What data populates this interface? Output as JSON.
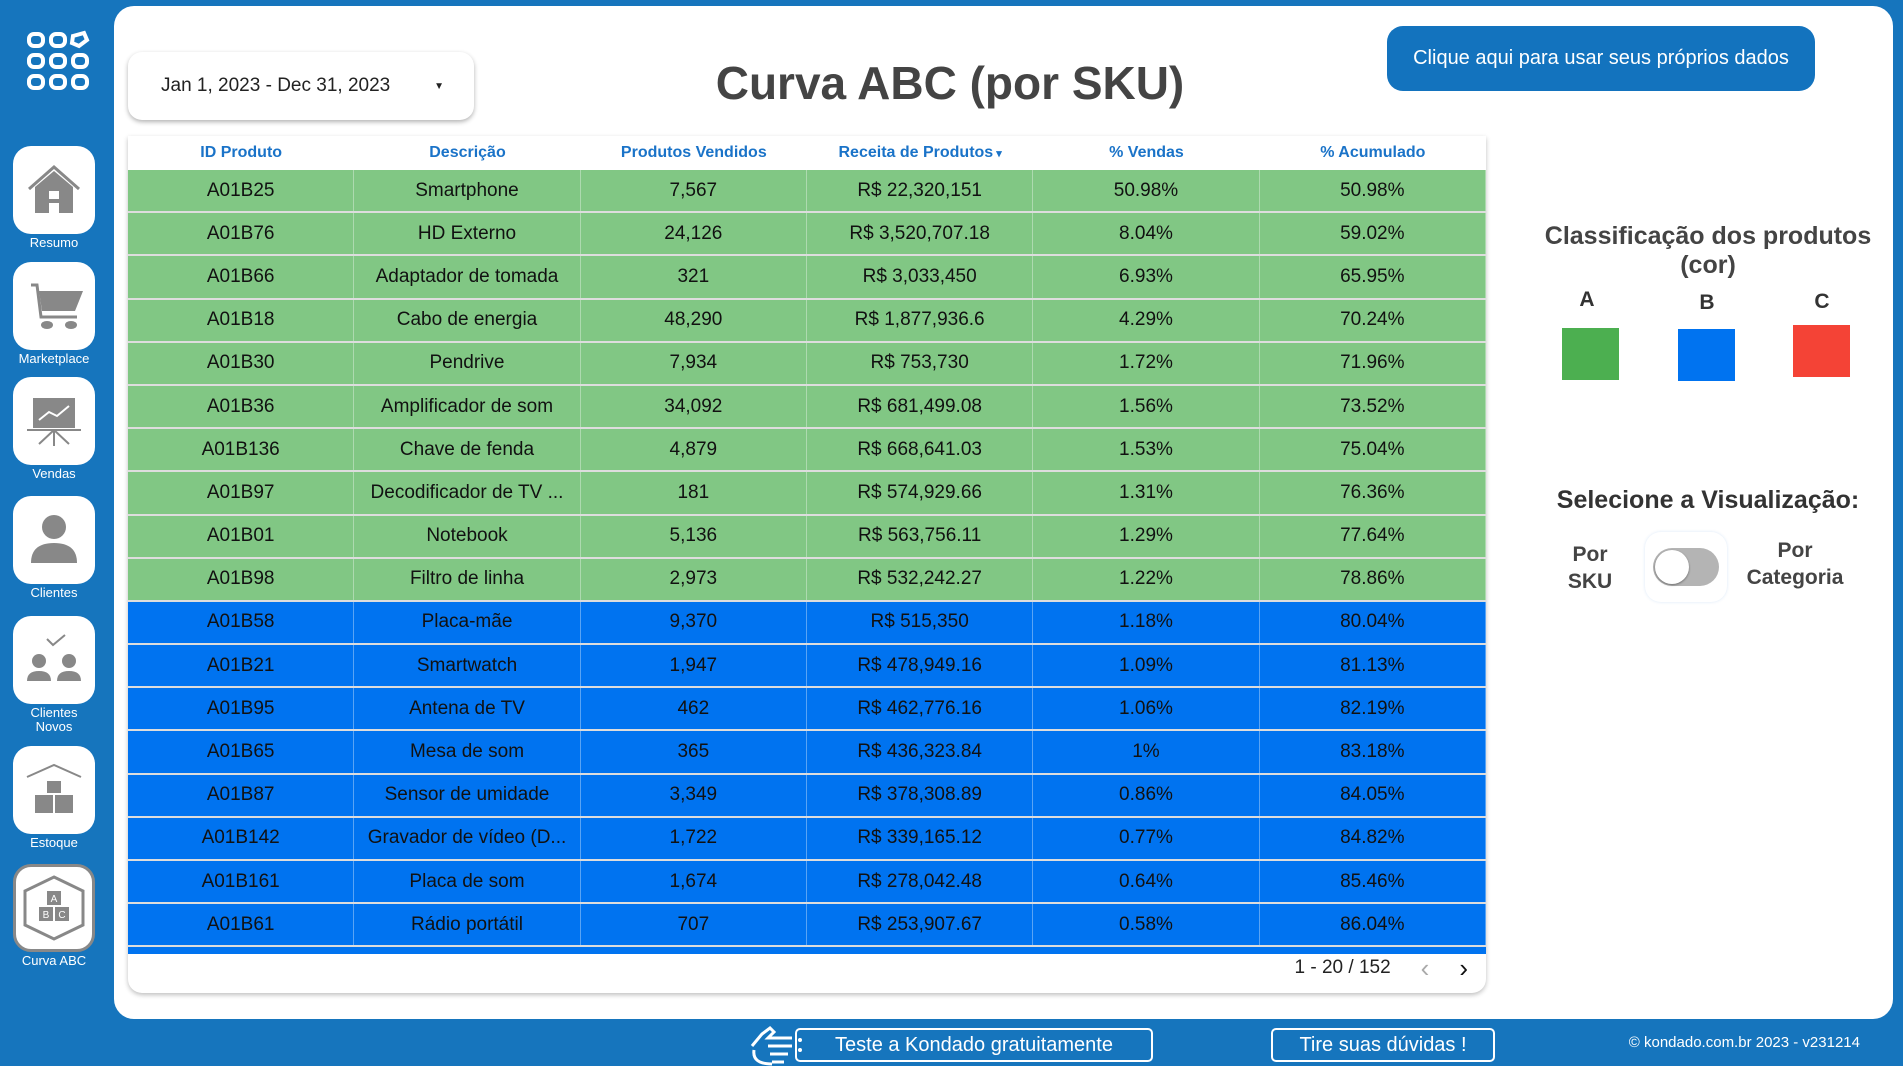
{
  "sidebar": {
    "items": [
      {
        "label": "Resumo",
        "icon": "home-icon"
      },
      {
        "label": "Marketplace",
        "icon": "cart-icon"
      },
      {
        "label": "Vendas",
        "icon": "presentation-chart-icon"
      },
      {
        "label": "Clientes",
        "icon": "user-icon"
      },
      {
        "label": "Clientes Novos",
        "icon": "new-clients-icon"
      },
      {
        "label": "Estoque",
        "icon": "warehouse-icon"
      },
      {
        "label": "Curva ABC",
        "icon": "abc-curve-icon",
        "active": true
      }
    ]
  },
  "header": {
    "date_range": "Jan 1, 2023 - Dec 31, 2023",
    "title": "Curva ABC (por SKU)",
    "cta": "Clique aqui para usar seus próprios dados"
  },
  "table": {
    "columns": [
      "ID Produto",
      "Descrição",
      "Produtos Vendidos",
      "Receita de Produtos",
      "% Vendas",
      "% Acumulado"
    ],
    "sort_column": "Receita de Produtos",
    "sort_dir": "desc",
    "rows": [
      [
        "A01B25",
        "Smartphone",
        "7,567",
        "R$ 22,320,151",
        "50.98%",
        "50.98%",
        "A"
      ],
      [
        "A01B76",
        "HD Externo",
        "24,126",
        "R$ 3,520,707.18",
        "8.04%",
        "59.02%",
        "A"
      ],
      [
        "A01B66",
        "Adaptador de tomada",
        "321",
        "R$ 3,033,450",
        "6.93%",
        "65.95%",
        "A"
      ],
      [
        "A01B18",
        "Cabo de energia",
        "48,290",
        "R$ 1,877,936.6",
        "4.29%",
        "70.24%",
        "A"
      ],
      [
        "A01B30",
        "Pendrive",
        "7,934",
        "R$ 753,730",
        "1.72%",
        "71.96%",
        "A"
      ],
      [
        "A01B36",
        "Amplificador de som",
        "34,092",
        "R$ 681,499.08",
        "1.56%",
        "73.52%",
        "A"
      ],
      [
        "A01B136",
        "Chave de fenda",
        "4,879",
        "R$ 668,641.03",
        "1.53%",
        "75.04%",
        "A"
      ],
      [
        "A01B97",
        "Decodificador de TV ...",
        "181",
        "R$ 574,929.66",
        "1.31%",
        "76.36%",
        "A"
      ],
      [
        "A01B01",
        "Notebook",
        "5,136",
        "R$ 563,756.11",
        "1.29%",
        "77.64%",
        "A"
      ],
      [
        "A01B98",
        "Filtro de linha",
        "2,973",
        "R$ 532,242.27",
        "1.22%",
        "78.86%",
        "A"
      ],
      [
        "A01B58",
        "Placa-mãe",
        "9,370",
        "R$ 515,350",
        "1.18%",
        "80.04%",
        "B"
      ],
      [
        "A01B21",
        "Smartwatch",
        "1,947",
        "R$ 478,949.16",
        "1.09%",
        "81.13%",
        "B"
      ],
      [
        "A01B95",
        "Antena de TV",
        "462",
        "R$ 462,776.16",
        "1.06%",
        "82.19%",
        "B"
      ],
      [
        "A01B65",
        "Mesa de som",
        "365",
        "R$ 436,323.84",
        "1%",
        "83.18%",
        "B"
      ],
      [
        "A01B87",
        "Sensor de umidade",
        "3,349",
        "R$ 378,308.89",
        "0.86%",
        "84.05%",
        "B"
      ],
      [
        "A01B142",
        "Gravador de vídeo (D...",
        "1,722",
        "R$ 339,165.12",
        "0.77%",
        "84.82%",
        "B"
      ],
      [
        "A01B161",
        "Placa de som",
        "1,674",
        "R$ 278,042.48",
        "0.64%",
        "85.46%",
        "B"
      ],
      [
        "A01B61",
        "Rádio portátil",
        "707",
        "R$ 253,907.67",
        "0.58%",
        "86.04%",
        "B"
      ]
    ],
    "pagination": "1 - 20 / 152"
  },
  "row_colors": {
    "A": "#81c784",
    "B": "#0073f0",
    "C": "#f44336"
  },
  "legend": {
    "title": "Classificação dos produtos (cor)",
    "classes": [
      {
        "label": "A",
        "color": "#4caf50"
      },
      {
        "label": "B",
        "color": "#0073f0"
      },
      {
        "label": "C",
        "color": "#f44336"
      }
    ]
  },
  "view": {
    "title": "Selecione a Visualização:",
    "option_left": "Por SKU",
    "option_right": "Por Categoria",
    "toggle_on": false
  },
  "footer": {
    "trial": "Teste a Kondado gratuitamente",
    "help": "Tire suas dúvidas !",
    "copyright": "© kondado.com.br 2023 - v231214"
  }
}
